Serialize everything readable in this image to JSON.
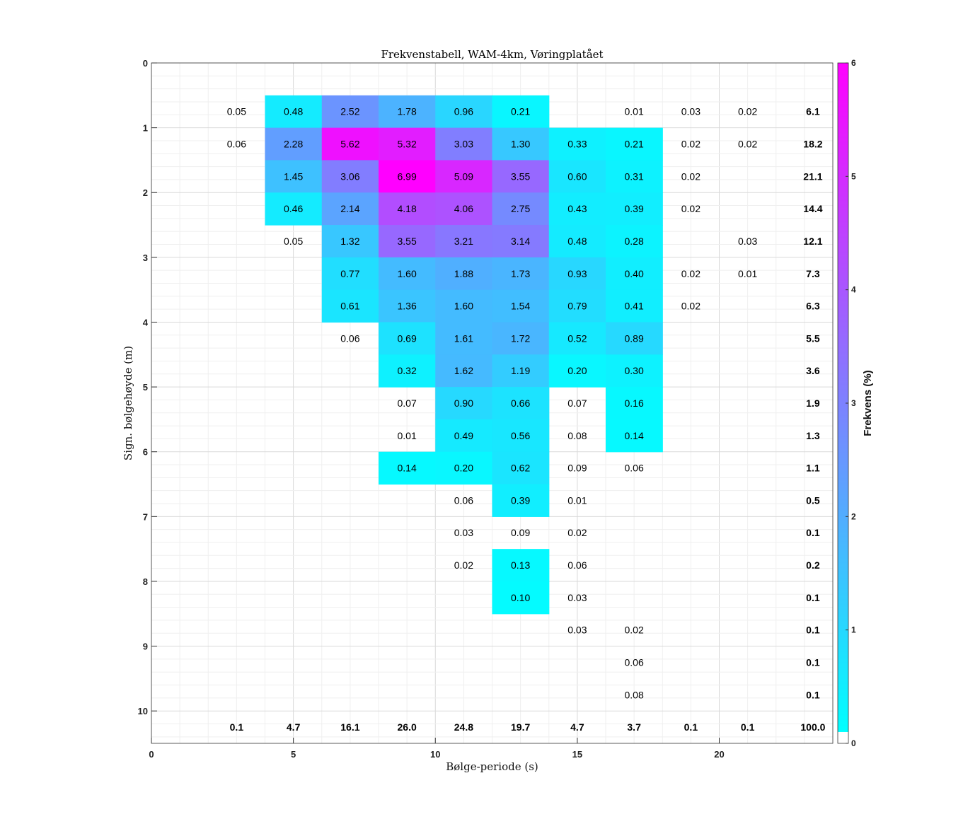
{
  "chart_data": {
    "type": "heatmap",
    "title": "Frekvenstabell, WAM-4km, Vøringplatået",
    "xlabel": "Bølge-periode (s)",
    "ylabel": "Sign. bølgehøyde (m)",
    "xlim": [
      0,
      24
    ],
    "ylim": [
      0,
      10.5
    ],
    "y_reversed": true,
    "x_ticks": [
      "0",
      "5",
      "10",
      "15",
      "20"
    ],
    "y_ticks": [
      "0",
      "1",
      "2",
      "3",
      "4",
      "5",
      "6",
      "7",
      "8",
      "9",
      "10"
    ],
    "grid": true,
    "x_bins": [
      [
        2,
        4
      ],
      [
        4,
        6
      ],
      [
        6,
        8
      ],
      [
        8,
        10
      ],
      [
        10,
        12
      ],
      [
        12,
        14
      ],
      [
        14,
        16
      ],
      [
        16,
        18
      ],
      [
        18,
        20
      ],
      [
        20,
        22
      ]
    ],
    "y_bins": [
      [
        0.5,
        1.0
      ],
      [
        1.0,
        1.5
      ],
      [
        1.5,
        2.0
      ],
      [
        2.0,
        2.5
      ],
      [
        2.5,
        3.0
      ],
      [
        3.0,
        3.5
      ],
      [
        3.5,
        4.0
      ],
      [
        4.0,
        4.5
      ],
      [
        4.5,
        5.0
      ],
      [
        5.0,
        5.5
      ],
      [
        5.5,
        6.0
      ],
      [
        6.0,
        6.5
      ],
      [
        6.5,
        7.0
      ],
      [
        7.0,
        7.5
      ],
      [
        7.5,
        8.0
      ],
      [
        8.0,
        8.5
      ],
      [
        8.5,
        9.0
      ],
      [
        9.0,
        9.5
      ],
      [
        9.5,
        10.0
      ]
    ],
    "value_labels": [
      [
        "0.05",
        "0.48",
        "2.52",
        "1.78",
        "0.96",
        "0.21",
        "",
        "0.01",
        "0.03",
        "0.02"
      ],
      [
        "0.06",
        "2.28",
        "5.62",
        "5.32",
        "3.03",
        "1.30",
        "0.33",
        "0.21",
        "0.02",
        "0.02"
      ],
      [
        "",
        "1.45",
        "3.06",
        "6.99",
        "5.09",
        "3.55",
        "0.60",
        "0.31",
        "0.02",
        ""
      ],
      [
        "",
        "0.46",
        "2.14",
        "4.18",
        "4.06",
        "2.75",
        "0.43",
        "0.39",
        "0.02",
        ""
      ],
      [
        "",
        "0.05",
        "1.32",
        "3.55",
        "3.21",
        "3.14",
        "0.48",
        "0.28",
        "",
        "0.03"
      ],
      [
        "",
        "",
        "0.77",
        "1.60",
        "1.88",
        "1.73",
        "0.93",
        "0.40",
        "0.02",
        "0.01"
      ],
      [
        "",
        "",
        "0.61",
        "1.36",
        "1.60",
        "1.54",
        "0.79",
        "0.41",
        "0.02",
        ""
      ],
      [
        "",
        "",
        "0.06",
        "0.69",
        "1.61",
        "1.72",
        "0.52",
        "0.89",
        "",
        ""
      ],
      [
        "",
        "",
        "",
        "0.32",
        "1.62",
        "1.19",
        "0.20",
        "0.30",
        "",
        ""
      ],
      [
        "",
        "",
        "",
        "0.07",
        "0.90",
        "0.66",
        "0.07",
        "0.16",
        "",
        ""
      ],
      [
        "",
        "",
        "",
        "0.01",
        "0.49",
        "0.56",
        "0.08",
        "0.14",
        "",
        ""
      ],
      [
        "",
        "",
        "",
        "0.14",
        "0.20",
        "0.62",
        "0.09",
        "0.06",
        "",
        ""
      ],
      [
        "",
        "",
        "",
        "",
        "0.06",
        "0.39",
        "0.01",
        "",
        "",
        ""
      ],
      [
        "",
        "",
        "",
        "",
        "0.03",
        "0.09",
        "0.02",
        "",
        "",
        ""
      ],
      [
        "",
        "",
        "",
        "",
        "0.02",
        "0.13",
        "0.06",
        "",
        "",
        ""
      ],
      [
        "",
        "",
        "",
        "",
        "",
        "0.10",
        "0.03",
        "",
        "",
        ""
      ],
      [
        "",
        "",
        "",
        "",
        "",
        "",
        "0.03",
        "0.02",
        "",
        ""
      ],
      [
        "",
        "",
        "",
        "",
        "",
        "",
        "",
        "0.06",
        "",
        ""
      ],
      [
        "",
        "",
        "",
        "",
        "",
        "",
        "",
        "0.08",
        "",
        ""
      ]
    ],
    "colored_cells": [
      [
        false,
        true,
        true,
        true,
        true,
        true,
        false,
        false,
        false,
        false
      ],
      [
        false,
        true,
        true,
        true,
        true,
        true,
        true,
        true,
        false,
        false
      ],
      [
        false,
        true,
        true,
        true,
        true,
        true,
        true,
        true,
        false,
        false
      ],
      [
        false,
        true,
        true,
        true,
        true,
        true,
        true,
        true,
        false,
        false
      ],
      [
        false,
        false,
        true,
        true,
        true,
        true,
        true,
        true,
        false,
        false
      ],
      [
        false,
        false,
        true,
        true,
        true,
        true,
        true,
        true,
        false,
        false
      ],
      [
        false,
        false,
        true,
        true,
        true,
        true,
        true,
        true,
        false,
        false
      ],
      [
        false,
        false,
        false,
        true,
        true,
        true,
        true,
        true,
        false,
        false
      ],
      [
        false,
        false,
        false,
        true,
        true,
        true,
        true,
        true,
        false,
        false
      ],
      [
        false,
        false,
        false,
        false,
        true,
        true,
        false,
        true,
        false,
        false
      ],
      [
        false,
        false,
        false,
        false,
        true,
        true,
        false,
        true,
        false,
        false
      ],
      [
        false,
        false,
        false,
        true,
        true,
        true,
        false,
        false,
        false,
        false
      ],
      [
        false,
        false,
        false,
        false,
        false,
        true,
        false,
        false,
        false,
        false
      ],
      [
        false,
        false,
        false,
        false,
        false,
        false,
        false,
        false,
        false,
        false
      ],
      [
        false,
        false,
        false,
        false,
        false,
        true,
        false,
        false,
        false,
        false
      ],
      [
        false,
        false,
        false,
        false,
        false,
        true,
        false,
        false,
        false,
        false
      ],
      [
        false,
        false,
        false,
        false,
        false,
        false,
        false,
        false,
        false,
        false
      ],
      [
        false,
        false,
        false,
        false,
        false,
        false,
        false,
        false,
        false,
        false
      ],
      [
        false,
        false,
        false,
        false,
        false,
        false,
        false,
        false,
        false,
        false
      ]
    ],
    "row_totals": [
      "6.1",
      "18.2",
      "21.1",
      "14.4",
      "12.1",
      "7.3",
      "6.3",
      "5.5",
      "3.6",
      "1.9",
      "1.3",
      "1.1",
      "0.5",
      "0.1",
      "0.2",
      "0.1",
      "0.1",
      "0.1",
      "0.1"
    ],
    "row_totals_x": 23.3,
    "column_totals": [
      "0.1",
      "4.7",
      "16.1",
      "26.0",
      "24.8",
      "19.7",
      "4.7",
      "3.7",
      "0.1",
      "0.1",
      "100.0"
    ],
    "column_totals_y": 10.25,
    "colorbar": {
      "label": "Frekvens (%)",
      "range": [
        0,
        6
      ],
      "ticks": [
        "0",
        "1",
        "2",
        "3",
        "4",
        "5",
        "6"
      ],
      "colors": [
        "#00ffff",
        "#ff00ff"
      ],
      "below_threshold_color": "#ffffff"
    }
  }
}
